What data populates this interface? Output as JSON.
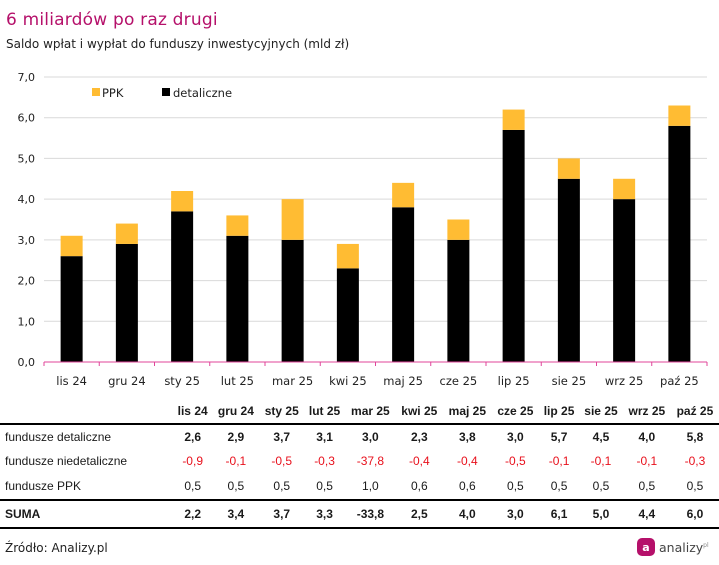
{
  "header": {
    "title": "6 miliardów po raz drugi",
    "subtitle": "Saldo wpłat i wypłat do funduszy inwestycyjnych (mld zł)"
  },
  "colors": {
    "title": "#b5106a",
    "ppk": "#ffbc33",
    "detaliczne": "#000000",
    "axis": "#e0449a",
    "grid": "#d9d9d9",
    "negative": "#e8101c"
  },
  "chart_data": {
    "type": "bar",
    "stacked": true,
    "title": "6 miliardów po raz drugi",
    "subtitle": "Saldo wpłat i wypłat do funduszy inwestycyjnych (mld zł)",
    "xlabel": "",
    "ylabel": "",
    "ylim": [
      0,
      7
    ],
    "yticks": [
      "0,0",
      "1,0",
      "2,0",
      "3,0",
      "4,0",
      "5,0",
      "6,0",
      "7,0"
    ],
    "grid": true,
    "legend_position": "top-left",
    "categories": [
      "lis 24",
      "gru 24",
      "sty 25",
      "lut 25",
      "mar 25",
      "kwi 25",
      "maj 25",
      "cze 25",
      "lip 25",
      "sie 25",
      "wrz 25",
      "paź 25"
    ],
    "series": [
      {
        "name": "detaliczne",
        "color": "#000000",
        "values": [
          2.6,
          2.9,
          3.7,
          3.1,
          3.0,
          2.3,
          3.8,
          3.0,
          5.7,
          4.5,
          4.0,
          5.8
        ]
      },
      {
        "name": "PPK",
        "color": "#ffbc33",
        "values": [
          0.5,
          0.5,
          0.5,
          0.5,
          1.0,
          0.6,
          0.6,
          0.5,
          0.5,
          0.5,
          0.5,
          0.5
        ]
      }
    ],
    "legend": [
      "PPK",
      "detaliczne"
    ]
  },
  "table": {
    "columns": [
      "lis 24",
      "gru 24",
      "sty 25",
      "lut 25",
      "mar 25",
      "kwi 25",
      "maj 25",
      "cze 25",
      "lip 25",
      "sie 25",
      "wrz 25",
      "paź 25"
    ],
    "rows": [
      {
        "label": "fundusze detaliczne",
        "values": [
          "2,6",
          "2,9",
          "3,7",
          "3,1",
          "3,0",
          "2,3",
          "3,8",
          "3,0",
          "5,7",
          "4,5",
          "4,0",
          "5,8"
        ]
      },
      {
        "label": "fundusze niedetaliczne",
        "values": [
          "-0,9",
          "-0,1",
          "-0,5",
          "-0,3",
          "-37,8",
          "-0,4",
          "-0,4",
          "-0,5",
          "-0,1",
          "-0,1",
          "-0,1",
          "-0,3"
        ]
      },
      {
        "label": "fundusze PPK",
        "values": [
          "0,5",
          "0,5",
          "0,5",
          "0,5",
          "1,0",
          "0,6",
          "0,6",
          "0,5",
          "0,5",
          "0,5",
          "0,5",
          "0,5"
        ]
      },
      {
        "label": "SUMA",
        "values": [
          "2,2",
          "3,4",
          "3,7",
          "3,3",
          "-33,8",
          "2,5",
          "4,0",
          "3,0",
          "6,1",
          "5,0",
          "4,4",
          "6,0"
        ]
      }
    ]
  },
  "footer": {
    "source": "Źródło: Analizy.pl",
    "logo_letter": "a",
    "logo_text": "analizy",
    "logo_mark": "pl"
  }
}
